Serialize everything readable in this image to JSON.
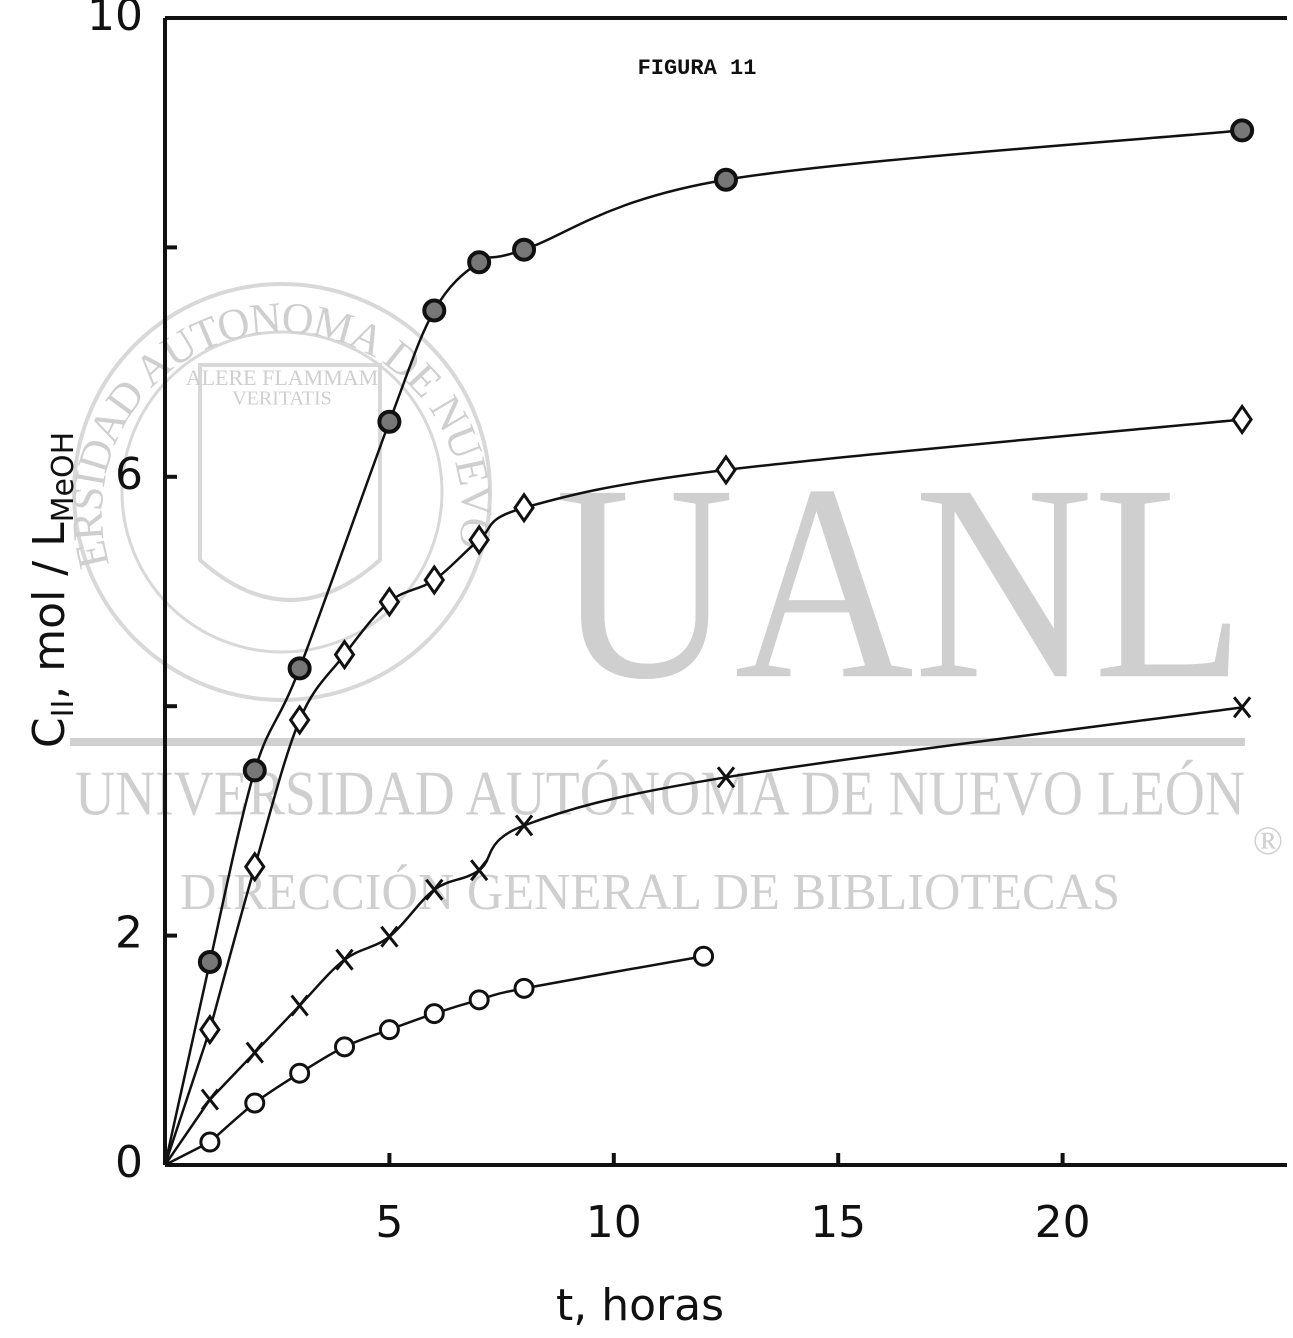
{
  "chart_data": {
    "type": "scatter",
    "title": "FIGURA 11",
    "xlabel": "t, horas",
    "ylabel": {
      "main": "C",
      "sub": "II",
      "rest": ", mol / L",
      "sub2": "MeOH"
    },
    "xlim": [
      0,
      25
    ],
    "ylim": [
      0,
      10
    ],
    "xticks": [
      5,
      10,
      15,
      20
    ],
    "yticks": [
      0,
      2,
      6,
      10
    ],
    "yminorticks": [
      4,
      8
    ],
    "grid": false,
    "series": [
      {
        "marker": "filled-circle",
        "color": "#111111",
        "x": [
          1,
          2,
          3,
          5,
          6,
          7,
          8,
          12.5,
          24
        ],
        "values": [
          1.77,
          3.44,
          4.33,
          6.48,
          7.45,
          7.87,
          7.98,
          8.59,
          9.02
        ]
      },
      {
        "marker": "diamond",
        "color": "#111111",
        "x": [
          1,
          2,
          3,
          4,
          5,
          6,
          7,
          8,
          12.5,
          24
        ],
        "values": [
          1.18,
          2.6,
          3.88,
          4.45,
          4.91,
          5.1,
          5.45,
          5.73,
          6.06,
          6.5
        ]
      },
      {
        "marker": "cross",
        "color": "#111111",
        "x": [
          1,
          2,
          3,
          4,
          5,
          6,
          7,
          8,
          12.5,
          24
        ],
        "values": [
          0.57,
          0.98,
          1.39,
          1.79,
          1.99,
          2.4,
          2.57,
          2.96,
          3.38,
          3.99
        ]
      },
      {
        "marker": "open-circle",
        "color": "#111111",
        "x": [
          1,
          2,
          3,
          4,
          5,
          6,
          7,
          8,
          12
        ],
        "values": [
          0.2,
          0.54,
          0.8,
          1.03,
          1.18,
          1.32,
          1.44,
          1.54,
          1.82
        ]
      }
    ]
  },
  "watermark": {
    "logo": "UANL",
    "university": "UNIVERSIDAD AUTÓNOMA DE NUEVO LEÓN",
    "office": "DIRECCIÓN GENERAL DE BIBLIOTECAS",
    "registered": "®",
    "seal_ring": "UNIVERSIDAD AUTONOMA DE NUEVO LEON",
    "motto1": "ALERE FLAMMAM",
    "motto2": "VERITATIS"
  }
}
